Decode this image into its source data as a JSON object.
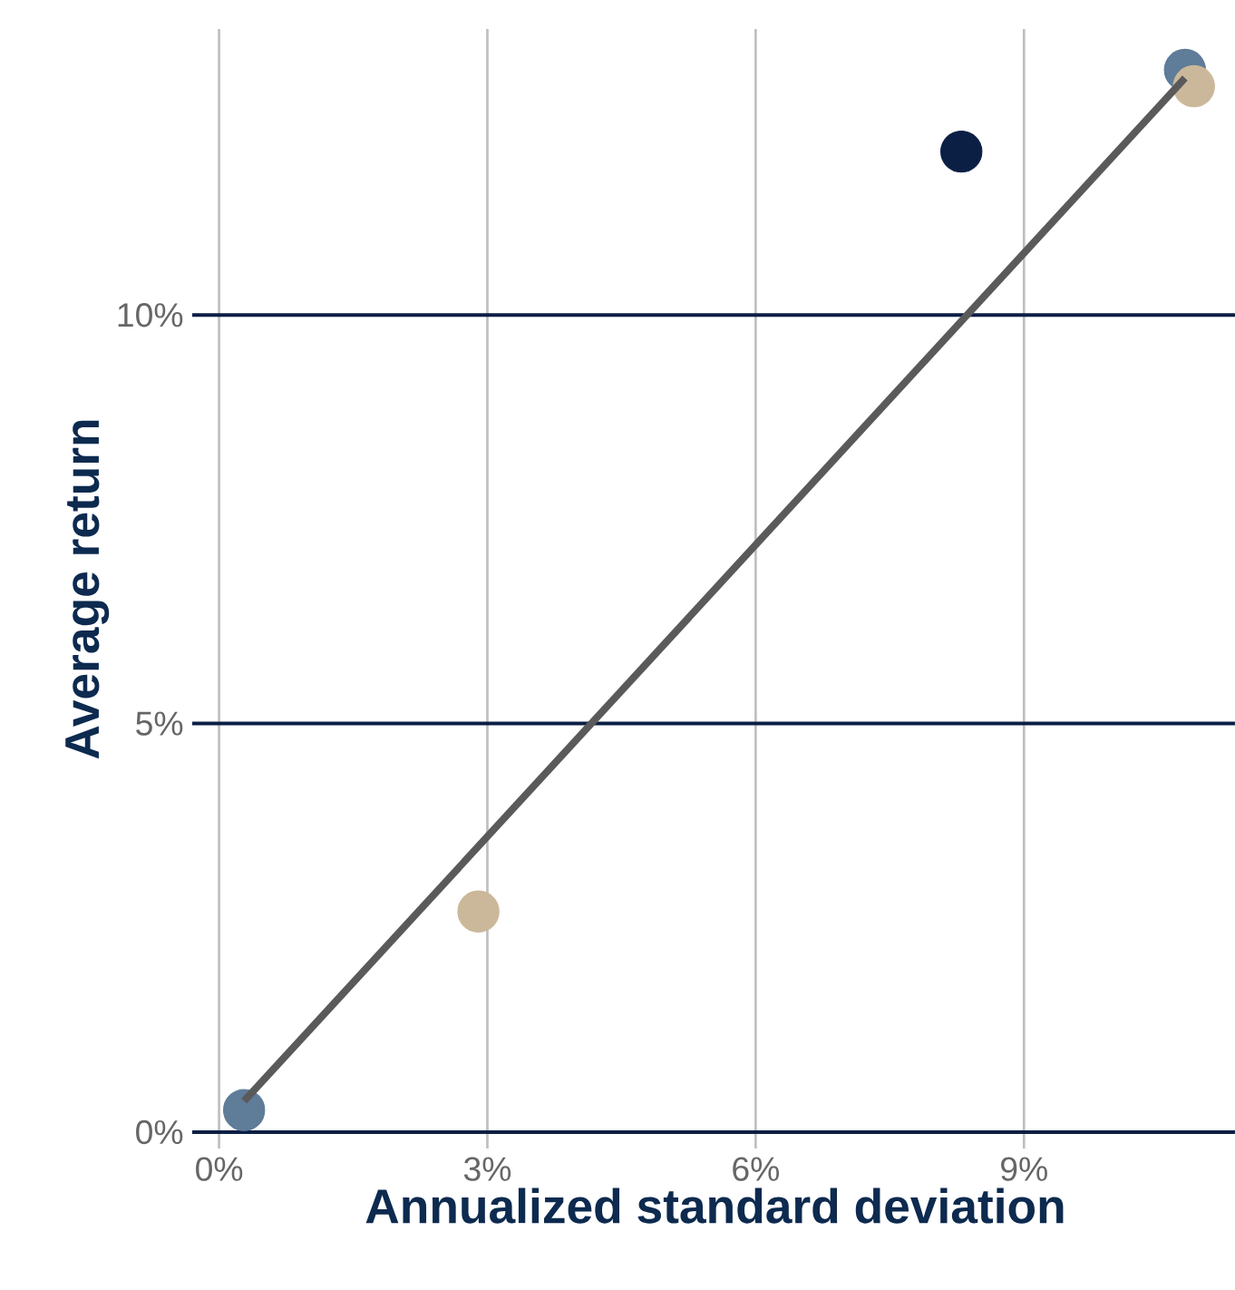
{
  "chart_data": {
    "type": "scatter",
    "xlabel": "Annualized standard deviation",
    "ylabel": "Average return",
    "xlim": [
      -0.3,
      11.4
    ],
    "ylim": [
      -0.2,
      13.5
    ],
    "xticks": [
      {
        "value": 0,
        "label": "0%"
      },
      {
        "value": 3,
        "label": "3%"
      },
      {
        "value": 6,
        "label": "6%"
      },
      {
        "value": 9,
        "label": "9%"
      }
    ],
    "yticks": [
      {
        "value": 0,
        "label": "0%"
      },
      {
        "value": 5,
        "label": "5%"
      },
      {
        "value": 10,
        "label": "10%"
      }
    ],
    "grid": true,
    "marker": "circle",
    "series": [
      {
        "x": [
          0.28,
          2.9,
          8.3,
          10.8,
          10.9
        ],
        "values": [
          0.27,
          2.7,
          12.0,
          13.0,
          12.8
        ],
        "colors": [
          "#5f7c99",
          "#cbb89a",
          "#0b1f45",
          "#5f7c99",
          "#cbb89a"
        ]
      },
      {
        "type": "line",
        "x": [
          0.28,
          10.8
        ],
        "values": [
          0.38,
          12.9
        ],
        "color": "#5a5a5a",
        "line_style": "solid",
        "marker": "none"
      }
    ]
  }
}
